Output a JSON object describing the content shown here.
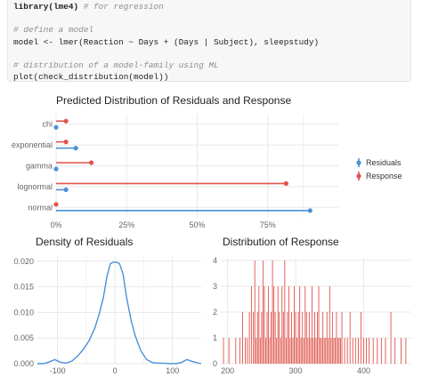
{
  "code": {
    "lines": [
      {
        "code": "library(lme4)",
        "comment": "# for regression"
      },
      {
        "code": "",
        "comment": ""
      },
      {
        "code": "",
        "comment": "# define a model"
      },
      {
        "code": "model <- lmer(Reaction ~ Days + (Days | Subject), sleepstudy)",
        "comment": ""
      },
      {
        "code": "",
        "comment": ""
      },
      {
        "code": "",
        "comment": "# distribution of a model-family using ML"
      },
      {
        "code": "plot(check_distribution(model))",
        "comment": ""
      }
    ]
  },
  "colors": {
    "residuals": "#4a90d9",
    "response": "#e0534b",
    "grid": "#e8e8e8",
    "axis_text": "#666666"
  },
  "chart_data": [
    {
      "type": "lollipop",
      "title": "Predicted Distribution of Residuals and Response",
      "categories": [
        "chi",
        "exponential",
        "gamma",
        "lognormal",
        "normal"
      ],
      "xlim": [
        0,
        1
      ],
      "xticks": [
        0,
        0.25,
        0.5,
        0.75
      ],
      "xtick_labels": [
        "0%",
        "25%",
        "50%",
        "75%"
      ],
      "series": [
        {
          "name": "Residuals",
          "values": [
            0.0,
            0.07,
            0.0,
            0.035,
            0.9
          ]
        },
        {
          "name": "Response",
          "values": [
            0.035,
            0.035,
            0.125,
            0.815,
            0.0
          ]
        }
      ],
      "legend": "right",
      "grid": true
    },
    {
      "type": "line",
      "title": "Density of Residuals",
      "xlim": [
        -135,
        150
      ],
      "ylim": [
        0,
        0.021
      ],
      "xticks": [
        -100,
        0,
        100
      ],
      "yticks": [
        0,
        0.005,
        0.01,
        0.015,
        0.02
      ],
      "ytick_labels": [
        "0.000",
        "0.005",
        "0.010",
        "0.015",
        "0.020"
      ],
      "x": [
        -135,
        -125,
        -115,
        -105,
        -95,
        -85,
        -75,
        -65,
        -55,
        -45,
        -35,
        -28,
        -20,
        -14,
        -8,
        -3,
        3,
        8,
        14,
        20,
        28,
        35,
        45,
        55,
        65,
        75,
        85,
        95,
        105,
        115,
        125,
        135,
        150
      ],
      "y": [
        0.0,
        0.0,
        0.0003,
        0.0008,
        0.0003,
        0.0001,
        0.0005,
        0.0015,
        0.0028,
        0.0045,
        0.007,
        0.0095,
        0.013,
        0.017,
        0.0195,
        0.0198,
        0.0198,
        0.0195,
        0.0175,
        0.013,
        0.0085,
        0.0055,
        0.0025,
        0.0008,
        0.0002,
        0.0001,
        0.0001,
        0.0,
        0.0,
        0.0002,
        0.0008,
        0.0004,
        0.0
      ],
      "series_color": "#4a90d9",
      "grid": true
    },
    {
      "type": "bar",
      "title": "Distribution of Response",
      "xlim": [
        190,
        470
      ],
      "ylim": [
        0,
        4.1
      ],
      "xticks": [
        200,
        300,
        400
      ],
      "yticks": [
        0,
        1,
        2,
        3,
        4
      ],
      "x": [
        194,
        202,
        212,
        218,
        222,
        226,
        229,
        232,
        235,
        238,
        240,
        242,
        244,
        246,
        248,
        250,
        252,
        254,
        256,
        258,
        260,
        262,
        264,
        266,
        268,
        270,
        272,
        274,
        276,
        278,
        280,
        282,
        284,
        286,
        288,
        290,
        292,
        294,
        296,
        298,
        300,
        302,
        304,
        306,
        308,
        310,
        312,
        314,
        316,
        318,
        320,
        322,
        324,
        326,
        328,
        330,
        332,
        334,
        336,
        338,
        340,
        342,
        344,
        346,
        348,
        350,
        352,
        354,
        356,
        358,
        360,
        362,
        364,
        366,
        368,
        372,
        376,
        380,
        384,
        388,
        392,
        396,
        400,
        404,
        408,
        414,
        420,
        426,
        432,
        440,
        446,
        455,
        462
      ],
      "values": [
        1,
        1,
        1,
        1,
        2,
        1,
        1,
        2,
        3,
        2,
        4,
        1,
        2,
        3,
        1,
        2,
        4,
        3,
        1,
        2,
        3,
        1,
        2,
        4,
        3,
        2,
        1,
        3,
        2,
        1,
        3,
        2,
        4,
        1,
        2,
        3,
        1,
        2,
        1,
        3,
        2,
        1,
        2,
        3,
        1,
        2,
        1,
        3,
        2,
        1,
        2,
        1,
        3,
        1,
        2,
        1,
        2,
        3,
        1,
        1,
        2,
        1,
        1,
        2,
        1,
        3,
        1,
        2,
        1,
        1,
        2,
        1,
        1,
        1,
        2,
        1,
        1,
        2,
        1,
        1,
        1,
        2,
        1,
        1,
        1,
        1,
        1,
        1,
        1,
        2,
        1,
        1,
        1
      ],
      "series_color": "#e0534b",
      "grid": true
    }
  ]
}
